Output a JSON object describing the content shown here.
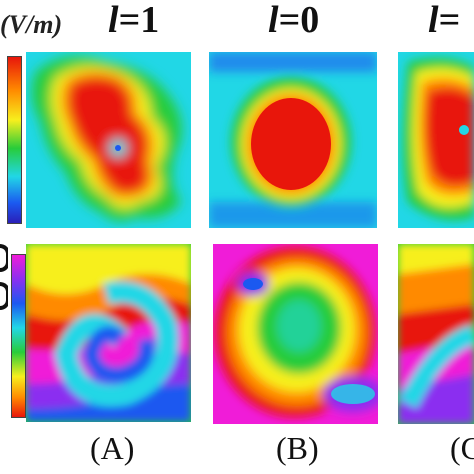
{
  "header": {
    "unit": "(V/m)",
    "columns": [
      {
        "l_symbol": "l",
        "l_value": "=1"
      },
      {
        "l_symbol": "l",
        "l_value": "=0"
      },
      {
        "l_symbol": "l",
        "l_value": "="
      }
    ]
  },
  "panels": {
    "labels": [
      "(A)",
      "(B)",
      "(C"
    ]
  },
  "colors": {
    "red": "#e8160b",
    "orange": "#ff8a00",
    "yellow": "#f7ef1d",
    "green": "#28cc3a",
    "cyan": "#21d7e6",
    "blue": "#1b59f0",
    "violet": "#8b2ff0",
    "magenta": "#f01cd8"
  }
}
